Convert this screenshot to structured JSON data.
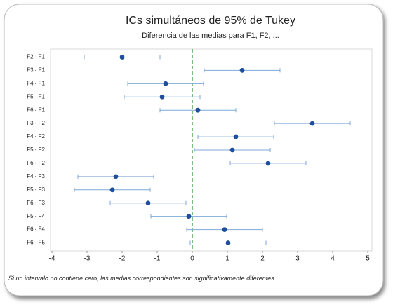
{
  "chart_data": {
    "type": "interval",
    "title": "ICs simultáneos de 95% de Tukey",
    "subtitle": "Diferencia de las medias para F1, F2, ...",
    "footnote": "Si un intervalo no contiene cero, las medias correspondientes son significativamente diferentes.",
    "categories": [
      "F2 - F1",
      "F3 - F1",
      "F4 - F1",
      "F5 - F1",
      "F6 - F1",
      "F3 - F2",
      "F4 - F2",
      "F5 - F2",
      "F6 - F2",
      "F4 - F3",
      "F5 - F3",
      "F6 - F3",
      "F5 - F4",
      "F6 - F4",
      "F6 - F5"
    ],
    "values": [
      -2.0,
      1.42,
      -0.76,
      -0.86,
      0.16,
      3.42,
      1.24,
      1.14,
      2.16,
      -2.18,
      -2.28,
      -1.26,
      -0.1,
      0.92,
      1.02
    ],
    "lower": [
      -3.08,
      0.34,
      -1.84,
      -1.94,
      -0.92,
      2.34,
      0.16,
      0.06,
      1.08,
      -3.26,
      -3.36,
      -2.34,
      -1.18,
      -0.16,
      -0.06
    ],
    "upper": [
      -0.92,
      2.5,
      0.32,
      0.22,
      1.24,
      4.5,
      2.32,
      2.22,
      3.24,
      -1.1,
      -1.2,
      -0.18,
      0.98,
      2.0,
      2.1
    ],
    "xlim": [
      -4.1,
      5.1
    ],
    "xticks": [
      -4,
      -3,
      -2,
      -1,
      0,
      1,
      2,
      3,
      4,
      5
    ],
    "reference_line": 0,
    "color": "#1f4e9c",
    "interval_color": "#7fa9d8",
    "reference_color": "#3a9a3a"
  }
}
